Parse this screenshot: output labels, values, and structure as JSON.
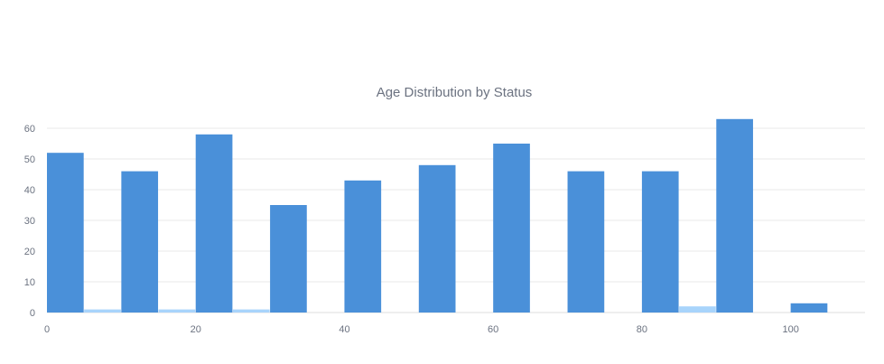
{
  "chart_data": {
    "type": "bar",
    "title": "Age Distribution by Status",
    "xlabel": "",
    "ylabel": "",
    "grid": true,
    "legend": "none",
    "xlim": [
      0,
      110
    ],
    "ylim": [
      0,
      65
    ],
    "x_ticks": [
      0,
      20,
      40,
      60,
      80,
      100
    ],
    "y_ticks": [
      0,
      10,
      20,
      30,
      40,
      50,
      60
    ],
    "bin_width": 10,
    "bins": [
      0,
      10,
      20,
      30,
      40,
      50,
      60,
      70,
      80,
      90,
      100
    ],
    "series": [
      {
        "color": "#4a90d9",
        "values": [
          52,
          46,
          58,
          35,
          43,
          48,
          55,
          46,
          46,
          63,
          3
        ]
      },
      {
        "color": "#a8d4fb",
        "values": [
          1,
          1,
          1,
          0,
          0,
          0,
          0,
          0,
          2,
          0,
          0
        ]
      }
    ]
  }
}
